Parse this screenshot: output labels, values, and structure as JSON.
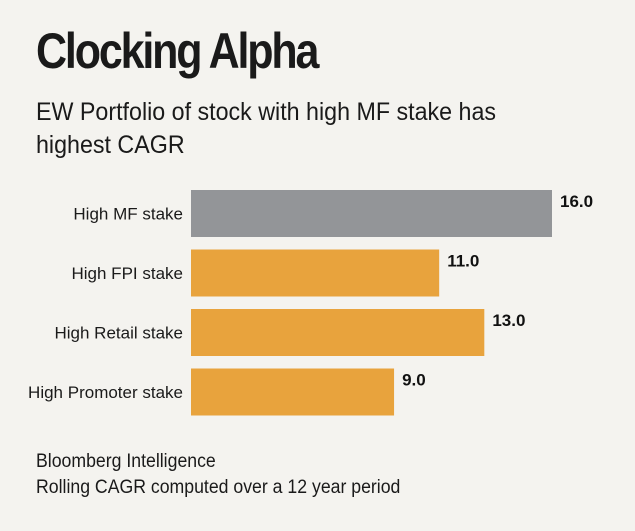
{
  "header": {
    "title": "Clocking Alpha",
    "subtitle": "EW Portfolio of stock with high MF stake has highest CAGR"
  },
  "footer": {
    "source": "Bloomberg Intelligence",
    "note": "Rolling CAGR computed over a 12 year period"
  },
  "chart_data": {
    "type": "bar",
    "orientation": "horizontal",
    "categories": [
      "High MF stake",
      "High FPI stake",
      "High Retail stake",
      "High Promoter stake"
    ],
    "values": [
      16.0,
      11.0,
      13.0,
      9.0
    ],
    "value_labels": [
      "16.0",
      "11.0",
      "13.0",
      "9.0"
    ],
    "colors": [
      "#939598",
      "#e8a33d",
      "#e8a33d",
      "#e8a33d"
    ],
    "title": "Clocking Alpha",
    "subtitle": "EW Portfolio of stock with high MF stake has highest CAGR",
    "xlabel": "",
    "ylabel": "",
    "xlim": [
      0,
      16
    ],
    "grid": false,
    "legend": "none"
  }
}
